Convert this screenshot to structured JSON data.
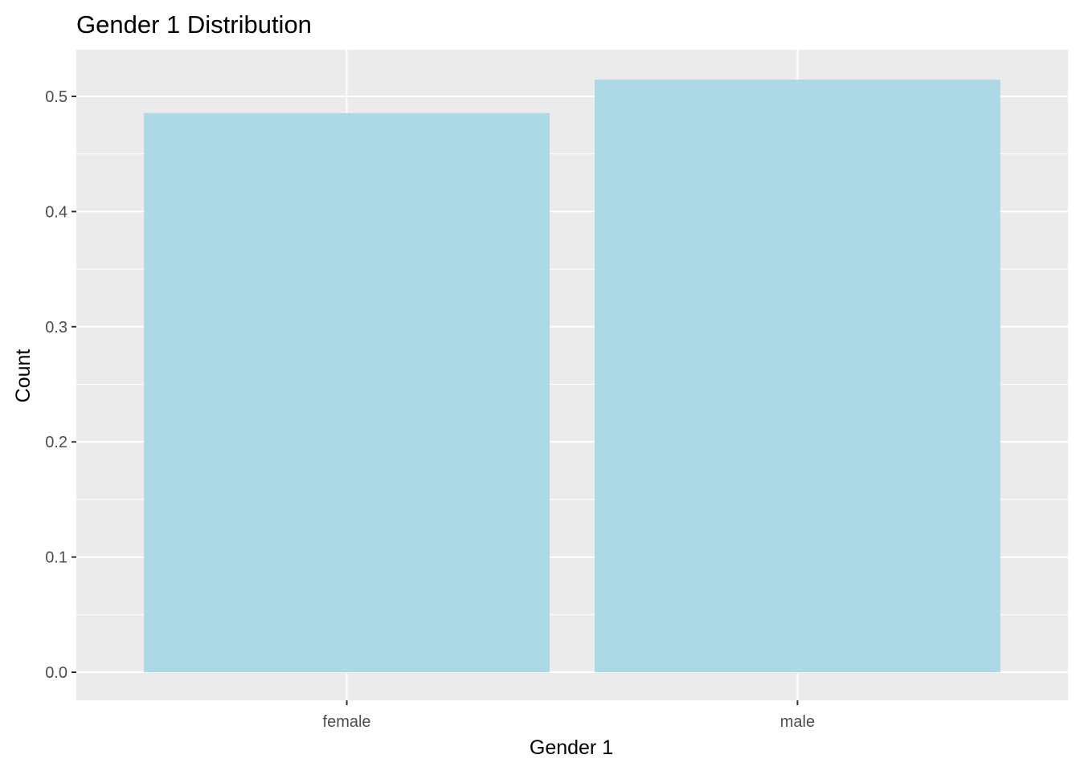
{
  "chart_data": {
    "type": "bar",
    "title": "Gender 1 Distribution",
    "xlabel": "Gender 1",
    "ylabel": "Count",
    "categories": [
      "female",
      "male"
    ],
    "values": [
      0.4855,
      0.5145
    ],
    "ylim": [
      -0.025,
      0.54
    ],
    "yticks": [
      0.0,
      0.1,
      0.2,
      0.3,
      0.4,
      0.5
    ],
    "ytick_labels": [
      "0.0",
      "0.1",
      "0.2",
      "0.3",
      "0.4",
      "0.5"
    ],
    "grid": true,
    "colors": {
      "bar": "#add8e6",
      "panel": "#ebebeb",
      "grid": "#ffffff",
      "tick": "#333333"
    }
  }
}
